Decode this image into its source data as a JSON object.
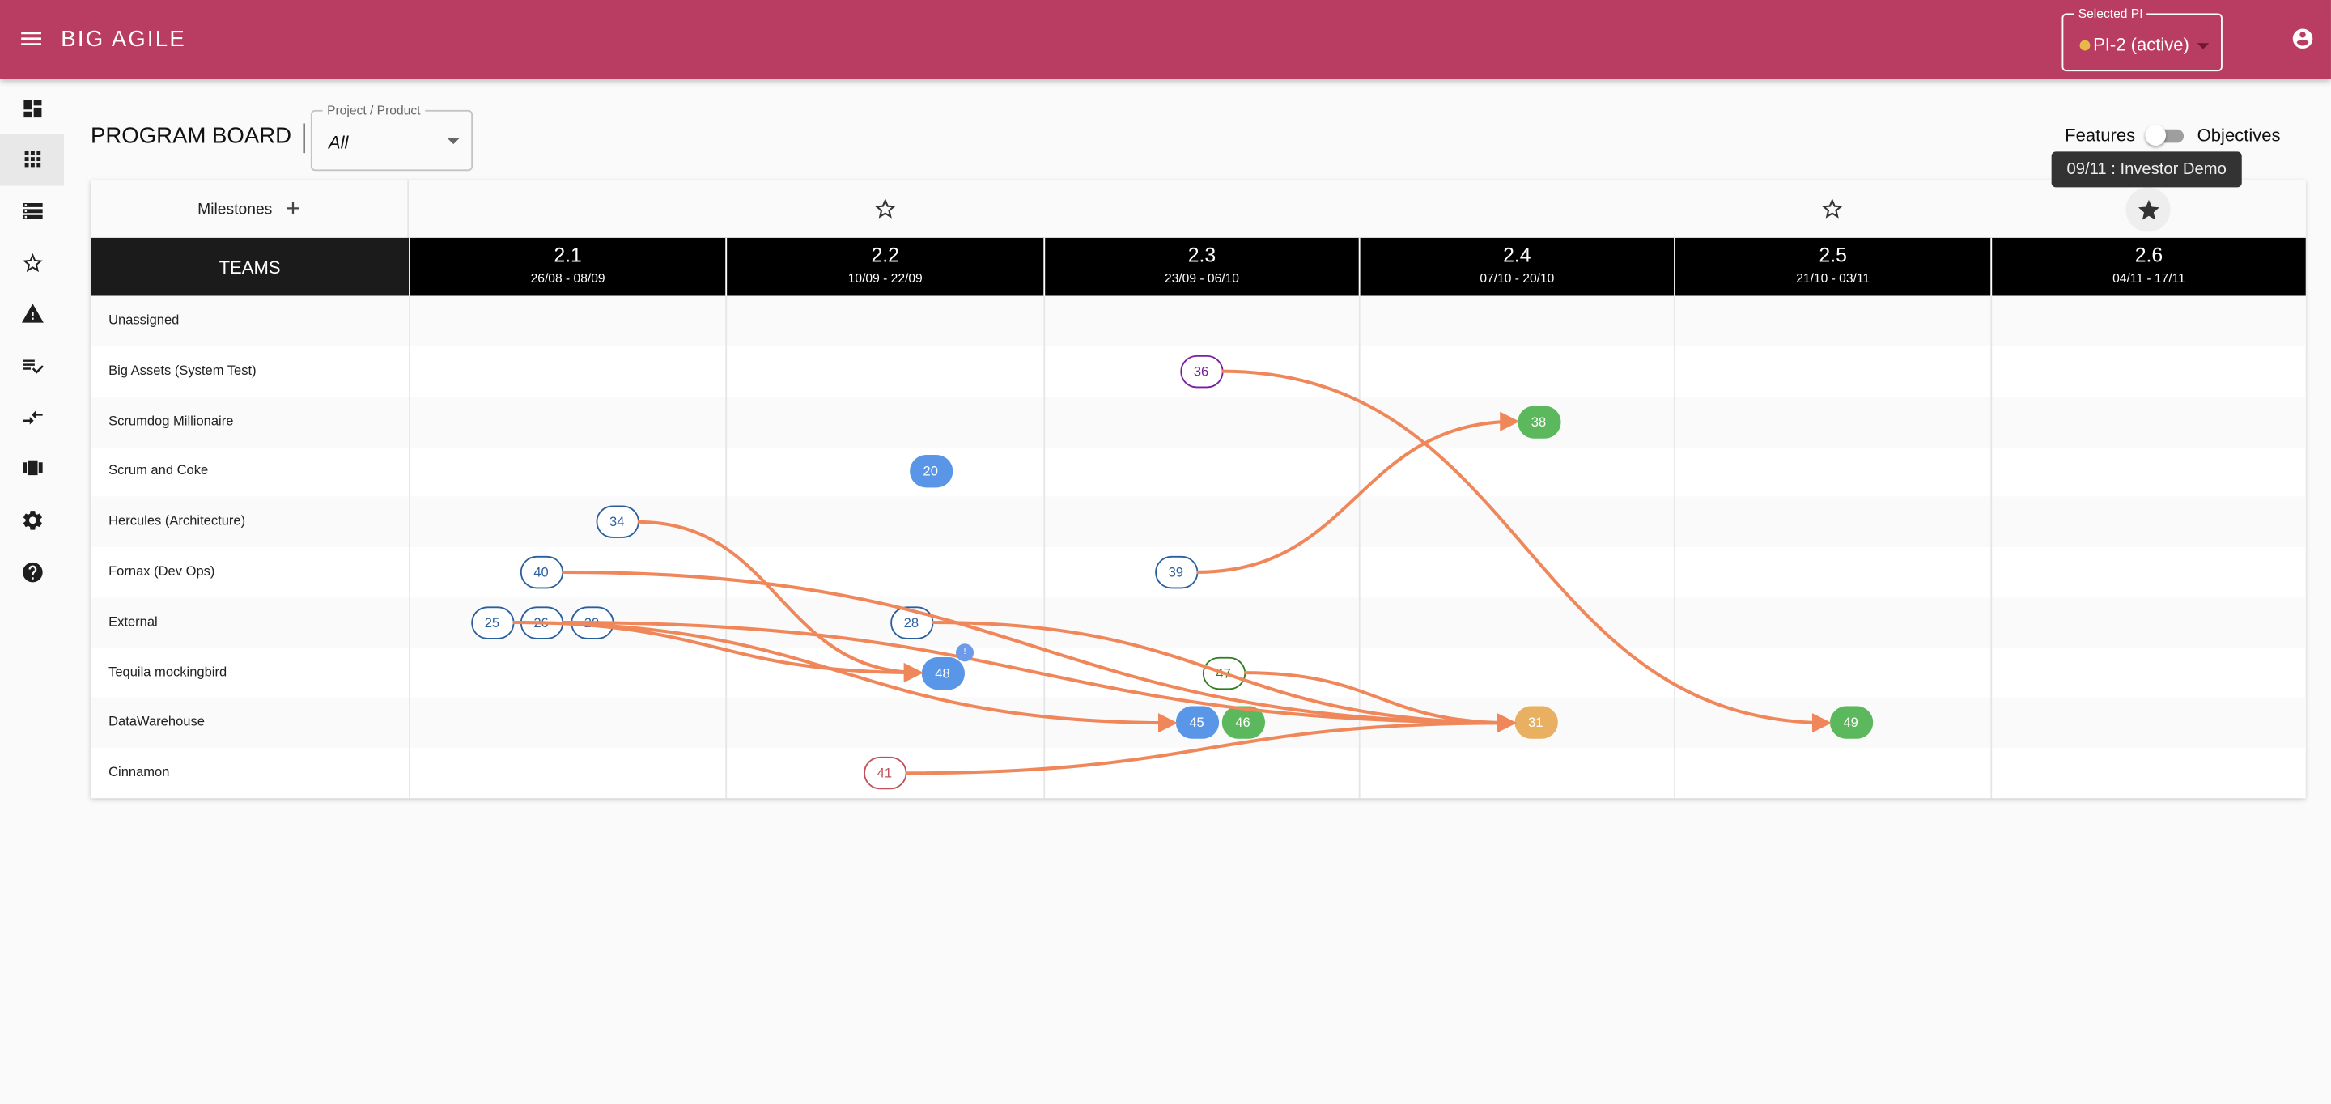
{
  "header": {
    "app_title": "BIG AGILE",
    "pi_label": "Selected PI",
    "pi_value": "PI-2 (active)"
  },
  "sidebar": {
    "items": [
      {
        "icon": "dashboard-icon"
      },
      {
        "icon": "program-board-icon",
        "active": true
      },
      {
        "icon": "list-icon"
      },
      {
        "icon": "star-icon"
      },
      {
        "icon": "warning-icon"
      },
      {
        "icon": "checklist-icon"
      },
      {
        "icon": "compare-arrows-icon"
      },
      {
        "icon": "carousel-icon"
      },
      {
        "icon": "settings-icon"
      },
      {
        "icon": "help-icon"
      }
    ]
  },
  "page": {
    "title": "PROGRAM BOARD",
    "filter_label": "Project / Product",
    "filter_value": "All",
    "toggle_left": "Features",
    "toggle_right": "Objectives",
    "toggle_on": false,
    "tooltip": "09/11 : Investor Demo"
  },
  "board": {
    "milestones_label": "Milestones",
    "add_label": "+",
    "teams_label": "TEAMS",
    "milestone_sprints": [
      1,
      4,
      5
    ],
    "selected_milestone_sprint": 5,
    "sprints": [
      {
        "name": "2.1",
        "dates": "26/08 - 08/09"
      },
      {
        "name": "2.2",
        "dates": "10/09 - 22/09"
      },
      {
        "name": "2.3",
        "dates": "23/09 - 06/10"
      },
      {
        "name": "2.4",
        "dates": "07/10 - 20/10"
      },
      {
        "name": "2.5",
        "dates": "21/10 - 03/11"
      },
      {
        "name": "2.6",
        "dates": "04/11 - 17/11"
      }
    ],
    "teams": [
      "Unassigned",
      "Big Assets (System Test)",
      "Scrumdog Millionaire",
      "Scrum and Coke",
      "Hercules (Architecture)",
      "Fornax (Dev Ops)",
      "External",
      "Tequila mockingbird",
      "DataWarehouse",
      "Cinnamon"
    ],
    "features": [
      {
        "id": "36",
        "team": 1,
        "sprint": 2,
        "style": "outline",
        "color": "#7b1fa2"
      },
      {
        "id": "38",
        "team": 2,
        "sprint": 3,
        "style": "filled",
        "color": "#5cb85c"
      },
      {
        "id": "20",
        "team": 3,
        "sprint": 1,
        "style": "filled",
        "color": "#5a96e8"
      },
      {
        "id": "34",
        "team": 4,
        "sprint": 0,
        "style": "outline",
        "color": "#2a5f9e"
      },
      {
        "id": "40",
        "team": 5,
        "sprint": 0,
        "style": "outline",
        "color": "#2a5f9e"
      },
      {
        "id": "39",
        "team": 5,
        "sprint": 2,
        "style": "outline",
        "color": "#2a5f9e"
      },
      {
        "id": "25",
        "team": 6,
        "sprint": 0,
        "style": "outline",
        "color": "#2a5f9e"
      },
      {
        "id": "26",
        "team": 6,
        "sprint": 0,
        "style": "outline",
        "color": "#2a5f9e"
      },
      {
        "id": "29",
        "team": 6,
        "sprint": 0,
        "style": "outline",
        "color": "#2a5f9e"
      },
      {
        "id": "28",
        "team": 6,
        "sprint": 1,
        "style": "outline",
        "color": "#2a5f9e"
      },
      {
        "id": "48",
        "team": 7,
        "sprint": 1,
        "style": "filled",
        "color": "#5a96e8",
        "badge": "!"
      },
      {
        "id": "47",
        "team": 7,
        "sprint": 2,
        "style": "outline",
        "color": "#2e7d1e"
      },
      {
        "id": "45",
        "team": 8,
        "sprint": 2,
        "style": "filled",
        "color": "#5a96e8"
      },
      {
        "id": "46",
        "team": 8,
        "sprint": 2,
        "style": "filled",
        "color": "#5cb85c"
      },
      {
        "id": "31",
        "team": 8,
        "sprint": 3,
        "style": "filled",
        "color": "#e8b060"
      },
      {
        "id": "49",
        "team": 8,
        "sprint": 4,
        "style": "filled",
        "color": "#5cb85c"
      },
      {
        "id": "41",
        "team": 9,
        "sprint": 1,
        "style": "outline",
        "color": "#c0505a"
      }
    ],
    "dependencies": [
      {
        "from": "36",
        "to": "49"
      },
      {
        "from": "39",
        "to": "38"
      },
      {
        "from": "34",
        "to": "48"
      },
      {
        "from": "40",
        "to": "31"
      },
      {
        "from": "25",
        "to": "45"
      },
      {
        "from": "25",
        "to": "48"
      },
      {
        "from": "26",
        "to": "31"
      },
      {
        "from": "28",
        "to": "31"
      },
      {
        "from": "47",
        "to": "31"
      },
      {
        "from": "41",
        "to": "31"
      }
    ]
  },
  "colors": {
    "brand": "#b93c62",
    "arrow": "#f0875a"
  }
}
